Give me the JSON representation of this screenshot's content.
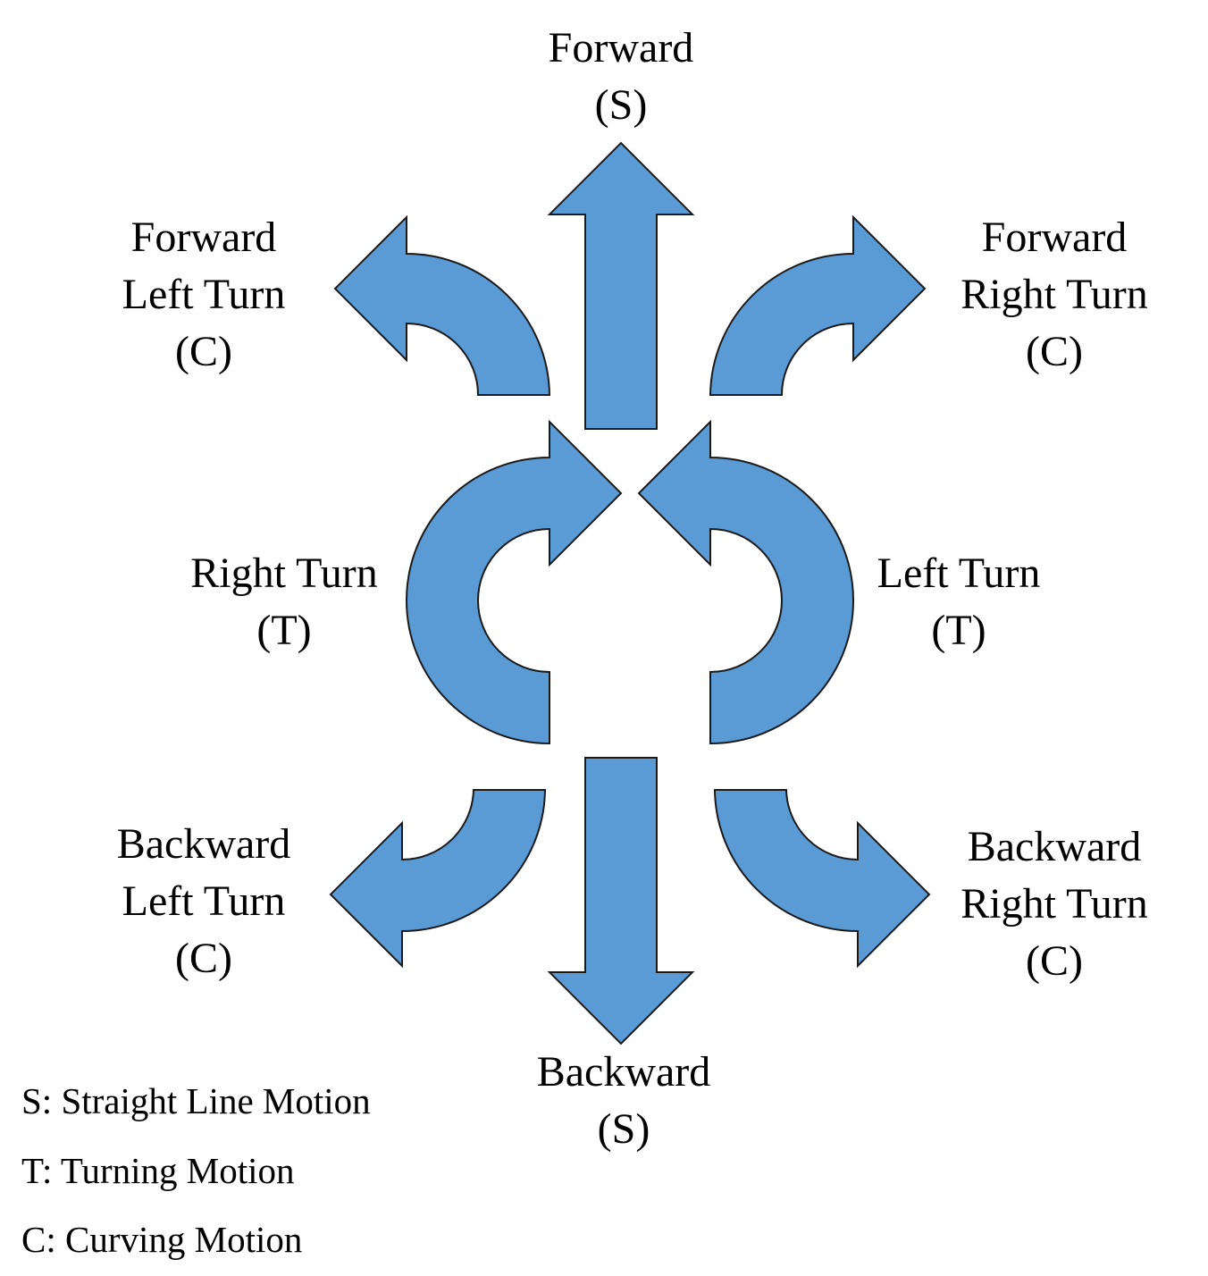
{
  "colors": {
    "arrow_fill": "#5b9bd5",
    "arrow_outline": "#1a1a1a",
    "text": "#000000",
    "background": "#ffffff"
  },
  "labels": {
    "forward": {
      "line1": "Forward",
      "line2": "(S)"
    },
    "forward_left": {
      "line1": "Forward",
      "line2": "Left Turn",
      "line3": "(C)"
    },
    "forward_right": {
      "line1": "Forward",
      "line2": "Right Turn",
      "line3": "(C)"
    },
    "right_turn": {
      "line1": "Right Turn",
      "line2": "(T)"
    },
    "left_turn": {
      "line1": "Left Turn",
      "line2": "(T)"
    },
    "backward_left": {
      "line1": "Backward",
      "line2": "Left Turn",
      "line3": "(C)"
    },
    "backward_right": {
      "line1": "Backward",
      "line2": "Right Turn",
      "line3": "(C)"
    },
    "backward": {
      "line1": "Backward",
      "line2": "(S)"
    }
  },
  "legend": {
    "s": "S: Straight Line Motion",
    "t": "T: Turning Motion",
    "c": "C: Curving Motion"
  }
}
